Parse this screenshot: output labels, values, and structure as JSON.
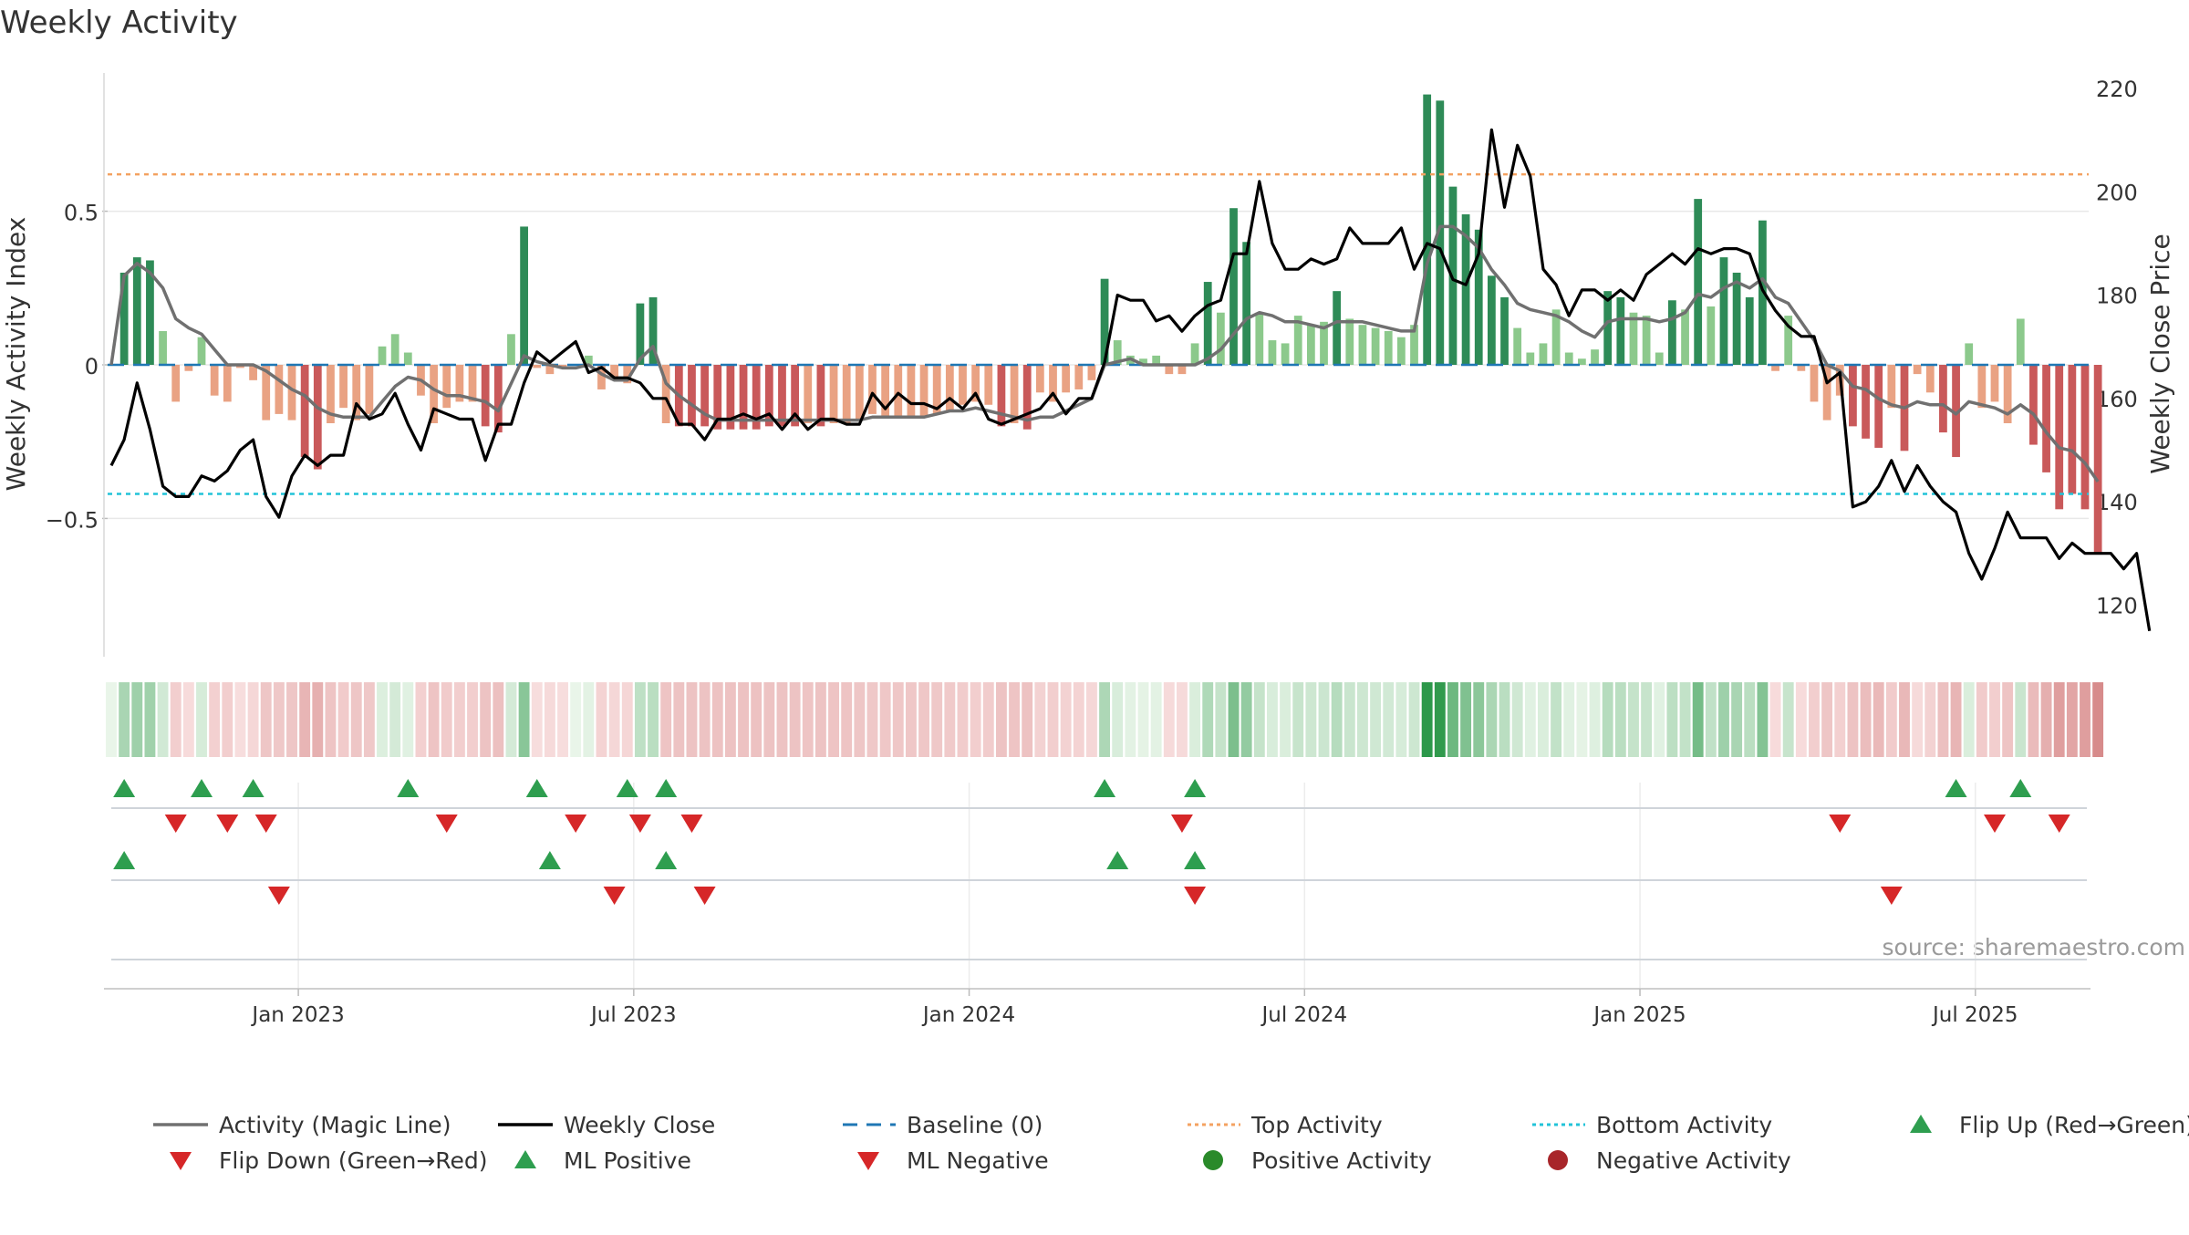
{
  "chart_data": {
    "type": "bar+line",
    "title": "Weekly Activity",
    "ylabel_left": "Weekly Activity Index",
    "ylabel_right": "Weekly Close Price",
    "xlabel": "",
    "ylim_left": [
      -0.95,
      0.95
    ],
    "ylim_right": [
      110,
      223
    ],
    "yticks_left": [
      {
        "v": 0.5,
        "label": "0.5"
      },
      {
        "v": 0,
        "label": "0"
      },
      {
        "v": -0.5,
        "label": "−0.5"
      }
    ],
    "yticks_right": [
      120,
      140,
      160,
      180,
      200,
      220
    ],
    "x_start_week": 0,
    "x_end_week": 153,
    "xticks": [
      {
        "week": 14.5,
        "label": "Jan 2023"
      },
      {
        "week": 40.5,
        "label": "Jul 2023"
      },
      {
        "week": 66.5,
        "label": "Jan 2024"
      },
      {
        "week": 92.5,
        "label": "Jul 2024"
      },
      {
        "week": 118.5,
        "label": "Jan 2025"
      },
      {
        "week": 144.5,
        "label": "Jul 2025"
      }
    ],
    "top_activity": 0.62,
    "bottom_activity": -0.42,
    "baseline": 0,
    "activity": [
      0.0,
      0.3,
      0.35,
      0.34,
      0.11,
      -0.12,
      -0.02,
      0.09,
      -0.1,
      -0.12,
      -0.01,
      -0.05,
      -0.18,
      -0.16,
      -0.18,
      -0.3,
      -0.34,
      -0.19,
      -0.14,
      -0.18,
      -0.16,
      0.06,
      0.1,
      0.04,
      -0.1,
      -0.19,
      -0.14,
      -0.12,
      -0.12,
      -0.2,
      -0.22,
      0.1,
      0.45,
      -0.01,
      -0.03,
      -0.01,
      0.0,
      0.03,
      -0.08,
      -0.05,
      -0.06,
      0.2,
      0.22,
      -0.19,
      -0.2,
      -0.2,
      -0.2,
      -0.21,
      -0.21,
      -0.21,
      -0.21,
      -0.2,
      -0.2,
      -0.2,
      -0.19,
      -0.2,
      -0.19,
      -0.19,
      -0.18,
      -0.16,
      -0.17,
      -0.17,
      -0.17,
      -0.17,
      -0.16,
      -0.15,
      -0.13,
      -0.12,
      -0.13,
      -0.2,
      -0.19,
      -0.21,
      -0.09,
      -0.12,
      -0.09,
      -0.08,
      -0.05,
      0.28,
      0.08,
      0.03,
      0.02,
      0.03,
      -0.03,
      -0.03,
      0.07,
      0.27,
      0.17,
      0.51,
      0.4,
      0.17,
      0.08,
      0.07,
      0.16,
      0.13,
      0.14,
      0.24,
      0.15,
      0.13,
      0.12,
      0.11,
      0.09,
      0.13,
      0.88,
      0.86,
      0.58,
      0.49,
      0.44,
      0.29,
      0.22,
      0.12,
      0.04,
      0.07,
      0.18,
      0.04,
      0.02,
      0.05,
      0.24,
      0.22,
      0.17,
      0.16,
      0.04,
      0.21,
      0.18,
      0.54,
      0.19,
      0.35,
      0.3,
      0.22,
      0.47,
      -0.02,
      0.16,
      -0.02,
      -0.12,
      -0.18,
      -0.1,
      -0.2,
      -0.24,
      -0.27,
      -0.14,
      -0.28,
      -0.03,
      -0.09,
      -0.22,
      -0.3,
      0.07,
      -0.14,
      -0.12,
      -0.19,
      0.15,
      -0.26,
      -0.35,
      -0.47,
      -0.42,
      -0.47,
      -0.61
    ],
    "magic_line": [
      0.0,
      0.29,
      0.33,
      0.3,
      0.25,
      0.15,
      0.12,
      0.1,
      0.05,
      0.0,
      0.0,
      0.0,
      -0.02,
      -0.05,
      -0.08,
      -0.1,
      -0.14,
      -0.16,
      -0.17,
      -0.17,
      -0.17,
      -0.12,
      -0.07,
      -0.04,
      -0.05,
      -0.08,
      -0.1,
      -0.1,
      -0.11,
      -0.12,
      -0.15,
      -0.06,
      0.03,
      0.01,
      0.0,
      -0.01,
      -0.01,
      0.0,
      -0.03,
      -0.05,
      -0.05,
      0.02,
      0.06,
      -0.06,
      -0.1,
      -0.13,
      -0.16,
      -0.18,
      -0.18,
      -0.18,
      -0.18,
      -0.18,
      -0.18,
      -0.18,
      -0.18,
      -0.18,
      -0.18,
      -0.18,
      -0.18,
      -0.17,
      -0.17,
      -0.17,
      -0.17,
      -0.17,
      -0.16,
      -0.15,
      -0.15,
      -0.14,
      -0.15,
      -0.16,
      -0.17,
      -0.18,
      -0.17,
      -0.17,
      -0.15,
      -0.13,
      -0.11,
      0.0,
      0.01,
      0.02,
      0.0,
      0.0,
      0.0,
      0.0,
      0.0,
      0.02,
      0.05,
      0.1,
      0.15,
      0.17,
      0.16,
      0.14,
      0.14,
      0.13,
      0.12,
      0.14,
      0.14,
      0.14,
      0.13,
      0.12,
      0.11,
      0.11,
      0.33,
      0.45,
      0.45,
      0.42,
      0.38,
      0.31,
      0.26,
      0.2,
      0.18,
      0.17,
      0.16,
      0.14,
      0.11,
      0.09,
      0.14,
      0.15,
      0.15,
      0.15,
      0.14,
      0.15,
      0.17,
      0.23,
      0.22,
      0.25,
      0.27,
      0.25,
      0.28,
      0.22,
      0.2,
      0.14,
      0.08,
      0.0,
      -0.02,
      -0.07,
      -0.08,
      -0.11,
      -0.13,
      -0.14,
      -0.12,
      -0.13,
      -0.13,
      -0.16,
      -0.12,
      -0.13,
      -0.14,
      -0.16,
      -0.13,
      -0.16,
      -0.22,
      -0.27,
      -0.28,
      -0.32,
      -0.38
    ],
    "weekly_close": [
      147,
      152,
      163,
      154,
      143,
      141,
      141,
      145,
      144,
      146,
      150,
      152,
      141,
      137,
      145,
      149,
      147,
      149,
      149,
      159,
      156,
      157,
      161,
      155,
      150,
      158,
      157,
      156,
      156,
      148,
      155,
      155,
      163,
      169,
      167,
      169,
      171,
      165,
      166,
      164,
      164,
      163,
      160,
      160,
      155,
      155,
      152,
      156,
      156,
      157,
      156,
      157,
      154,
      157,
      154,
      156,
      156,
      155,
      155,
      161,
      158,
      161,
      159,
      159,
      158,
      160,
      158,
      161,
      156,
      155,
      156,
      157,
      158,
      161,
      157,
      160,
      160,
      167,
      180,
      179,
      179,
      175,
      176,
      173,
      176,
      178,
      179,
      188,
      188,
      202,
      190,
      185,
      185,
      187,
      186,
      187,
      193,
      190,
      190,
      190,
      193,
      185,
      190,
      189,
      183,
      182,
      188,
      212,
      197,
      209,
      203,
      185,
      182,
      176,
      181,
      181,
      179,
      181,
      179,
      184,
      186,
      188,
      186,
      189,
      188,
      189,
      189,
      188,
      181,
      177,
      174,
      172,
      172,
      163,
      165,
      139,
      140,
      143,
      148,
      142,
      147,
      143,
      140,
      138,
      130,
      125,
      131,
      138,
      133,
      133,
      133,
      129,
      132,
      130,
      130,
      130,
      127,
      130,
      115
    ],
    "flip_up": [
      1,
      7,
      11,
      23,
      33,
      40,
      43,
      77,
      84,
      143,
      148
    ],
    "flip_down": [
      5,
      9,
      12,
      26,
      36,
      41,
      45,
      83,
      134,
      146,
      151
    ],
    "ml_positive": [
      1,
      34,
      43,
      78,
      84
    ],
    "ml_negative": [
      13,
      39,
      46,
      84,
      138
    ],
    "source_label": "source: sharemaestro.com",
    "legend": [
      {
        "label": "Activity (Magic Line)",
        "kind": "line",
        "color": "#707070"
      },
      {
        "label": "Weekly Close",
        "kind": "line",
        "color": "#000000"
      },
      {
        "label": "Baseline (0)",
        "kind": "dash",
        "color": "#1f77b4"
      },
      {
        "label": "Top Activity",
        "kind": "dot",
        "color": "#f4a261"
      },
      {
        "label": "Bottom Activity",
        "kind": "dot",
        "color": "#22c3d8"
      },
      {
        "label": "Flip Up (Red→Green)",
        "kind": "tri-up",
        "color": "#2e9e4f"
      },
      {
        "label": "Flip Down (Green→Red)",
        "kind": "tri-down",
        "color": "#d62728"
      },
      {
        "label": "ML Positive",
        "kind": "tri-up",
        "color": "#2e9e4f"
      },
      {
        "label": "ML Negative",
        "kind": "tri-down",
        "color": "#d62728"
      },
      {
        "label": "Positive Activity",
        "kind": "circle",
        "color": "#2a8a2a"
      },
      {
        "label": "Negative Activity",
        "kind": "circle",
        "color": "#a8262a"
      }
    ]
  }
}
